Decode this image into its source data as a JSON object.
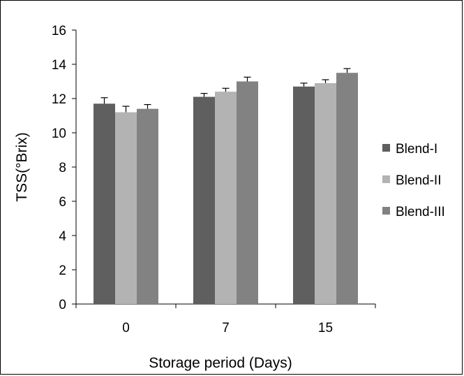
{
  "chart_data": {
    "type": "bar",
    "categories": [
      "0",
      "7",
      "15"
    ],
    "series": [
      {
        "name": "Blend-I",
        "values": [
          11.7,
          12.1,
          12.7
        ],
        "errors": [
          0.35,
          0.2,
          0.2
        ],
        "color": "#5f5f5f"
      },
      {
        "name": "Blend-II",
        "values": [
          11.2,
          12.4,
          12.9
        ],
        "errors": [
          0.35,
          0.2,
          0.2
        ],
        "color": "#b3b3b3"
      },
      {
        "name": "Blend-III",
        "values": [
          11.4,
          13.0,
          13.5
        ],
        "errors": [
          0.25,
          0.25,
          0.25
        ],
        "color": "#828282"
      }
    ],
    "xlabel": "Storage period (Days)",
    "ylabel": "TSS(°Brix)",
    "ylim": [
      0,
      16
    ],
    "yticks": [
      0,
      2,
      4,
      6,
      8,
      10,
      12,
      14,
      16
    ],
    "grid": false,
    "legend_position": "right"
  }
}
